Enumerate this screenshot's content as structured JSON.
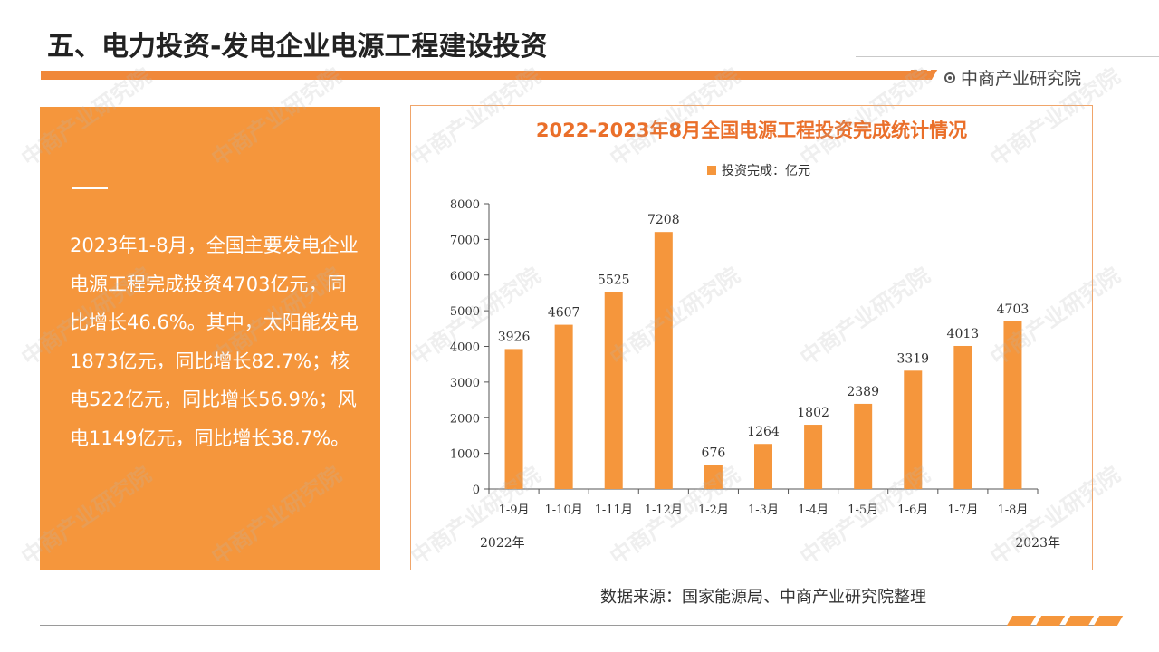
{
  "header": {
    "title": "五、电力投资-发电企业电源工程建设投资",
    "brand": "中商产业研究院"
  },
  "summary": {
    "text": "2023年1-8月，全国主要发电企业电源工程完成投资4703亿元，同比增长46.6%。其中，太阳能发电1873亿元，同比增长82.7%；核电522亿元，同比增长56.9%；风电1149亿元，同比增长38.7%。"
  },
  "footer": {
    "source": "数据来源：国家能源局、中商产业研究院整理"
  },
  "watermark": "中商产业研究院",
  "colors": {
    "accent": "#f5963c",
    "title_accent": "#ea6f2a",
    "bar": "#f5963c"
  },
  "chart_data": {
    "type": "bar",
    "title": "2022-2023年8月全国电源工程投资完成统计情况",
    "categories": [
      "1-9月",
      "1-10月",
      "1-11月",
      "1-12月",
      "1-2月",
      "1-3月",
      "1-4月",
      "1-5月",
      "1-6月",
      "1-7月",
      "1-8月"
    ],
    "series": [
      {
        "name": "投资完成：亿元",
        "values": [
          3926,
          4607,
          5525,
          7208,
          676,
          1264,
          1802,
          2389,
          3319,
          4013,
          4703
        ]
      }
    ],
    "ylim": [
      0,
      8000
    ],
    "yticks": [
      0,
      1000,
      2000,
      3000,
      4000,
      5000,
      6000,
      7000,
      8000
    ],
    "year_labels": {
      "start": "2022年",
      "end": "2023年"
    },
    "legend_position": "top",
    "grid": false
  }
}
